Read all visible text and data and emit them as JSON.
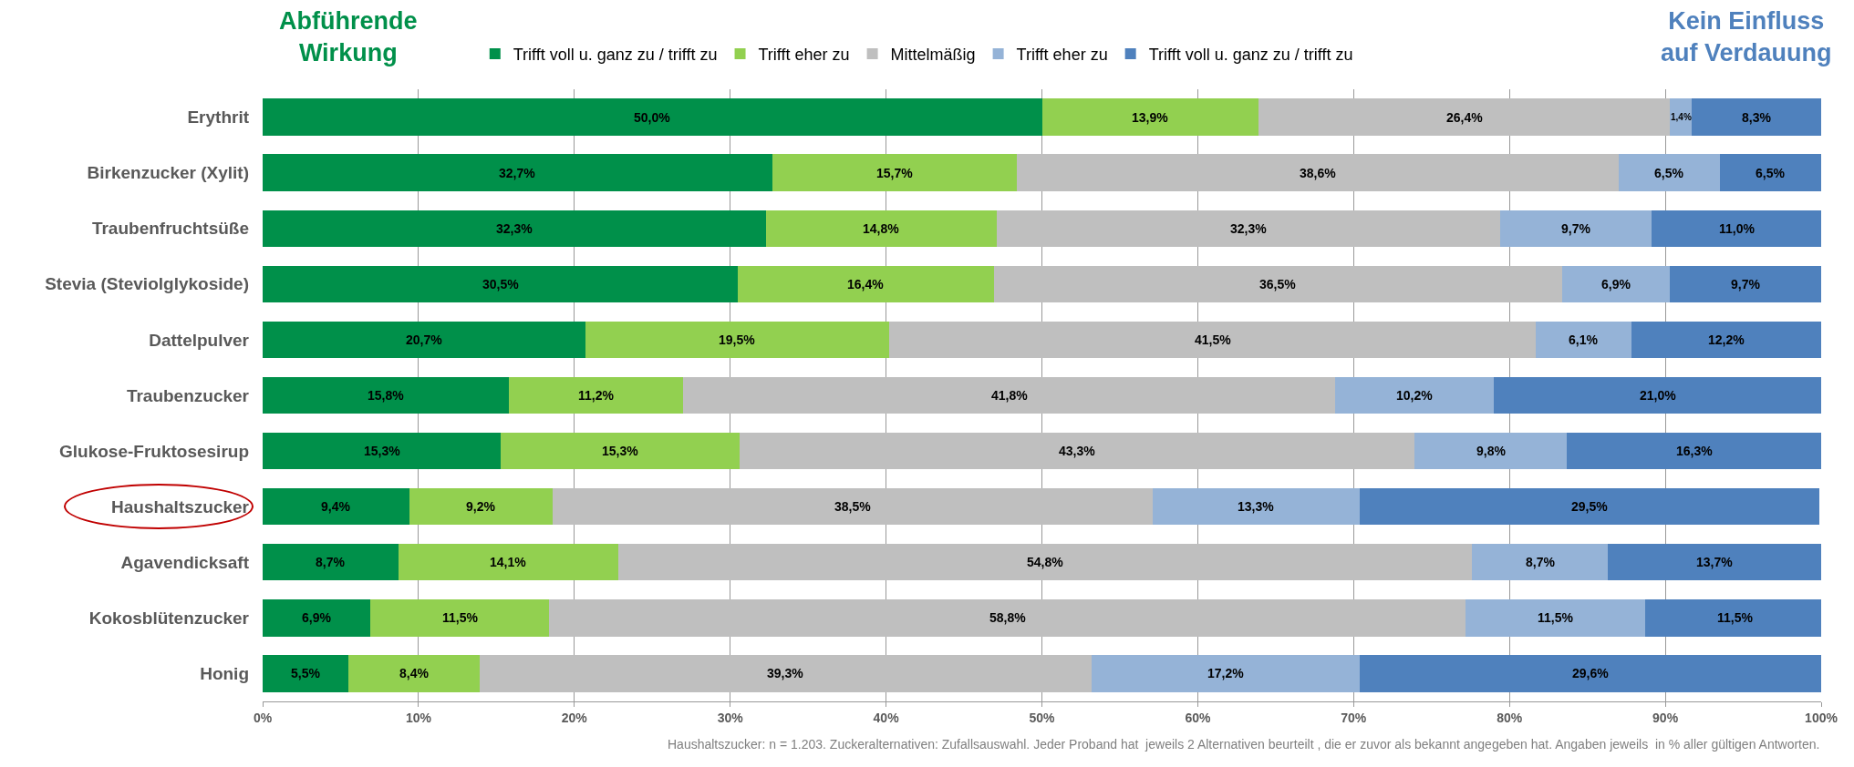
{
  "chart_data": {
    "type": "bar",
    "orientation": "horizontal",
    "stacked": true,
    "categories": [
      "Erythrit",
      "Birkenzucker (Xylit)",
      "Traubenfruchtsüße",
      "Stevia (Steviolglykoside)",
      "Dattelpulver",
      "Traubenzucker",
      "Glukose-Fruktosesirup",
      "Haushaltszucker",
      "Agavendicksaft",
      "Kokosblütenzucker",
      "Honig"
    ],
    "series": [
      {
        "name": "Trifft voll u. ganz zu / trifft zu",
        "color": "#00904a",
        "values": [
          50.0,
          32.7,
          32.3,
          30.5,
          20.7,
          15.8,
          15.3,
          9.4,
          8.7,
          6.9,
          5.5
        ],
        "value_labels": [
          "50,0%",
          "32,7%",
          "32,3%",
          "30,5%",
          "20,7%",
          "15,8%",
          "15,3%",
          "9,4%",
          "8,7%",
          "6,9%",
          "5,5%"
        ]
      },
      {
        "name": "Trifft eher zu",
        "color": "#92d050",
        "values": [
          13.9,
          15.7,
          14.8,
          16.4,
          19.5,
          11.2,
          15.3,
          9.2,
          14.1,
          11.5,
          8.4
        ],
        "value_labels": [
          "13,9%",
          "15,7%",
          "14,8%",
          "16,4%",
          "19,5%",
          "11,2%",
          "15,3%",
          "9,2%",
          "14,1%",
          "11,5%",
          "8,4%"
        ]
      },
      {
        "name": "Mittelmäßig",
        "color": "#bfbfbf",
        "values": [
          26.4,
          38.6,
          32.3,
          36.5,
          41.5,
          41.8,
          43.3,
          38.5,
          54.8,
          58.8,
          39.3
        ],
        "value_labels": [
          "26,4%",
          "38,6%",
          "32,3%",
          "36,5%",
          "41,5%",
          "41,8%",
          "43,3%",
          "38,5%",
          "54,8%",
          "58,8%",
          "39,3%"
        ]
      },
      {
        "name": "Trifft eher zu",
        "color": "#95b3d7",
        "values": [
          1.4,
          6.5,
          9.7,
          6.9,
          6.1,
          10.2,
          9.8,
          13.3,
          8.7,
          11.5,
          17.2
        ],
        "value_labels": [
          "1,4%",
          "6,5%",
          "9,7%",
          "6,9%",
          "6,1%",
          "10,2%",
          "9,8%",
          "13,3%",
          "8,7%",
          "11,5%",
          "17,2%"
        ]
      },
      {
        "name": "Trifft voll u. ganz zu / trifft zu",
        "color": "#4f81bd",
        "values": [
          8.3,
          6.5,
          11.0,
          9.7,
          12.2,
          21.0,
          16.3,
          29.5,
          13.7,
          11.5,
          29.6
        ],
        "value_labels": [
          "8,3%",
          "6,5%",
          "11,0%",
          "9,7%",
          "12,2%",
          "21,0%",
          "16,3%",
          "29,5%",
          "13,7%",
          "11,5%",
          "29,6%"
        ]
      }
    ],
    "xlim": [
      0,
      100
    ],
    "xticks": [
      {
        "value": 0,
        "label": "0%"
      },
      {
        "value": 10,
        "label": "10%"
      },
      {
        "value": 20,
        "label": "20%"
      },
      {
        "value": 30,
        "label": "30%"
      },
      {
        "value": 40,
        "label": "40%"
      },
      {
        "value": 50,
        "label": "50%"
      },
      {
        "value": 60,
        "label": "60%"
      },
      {
        "value": 70,
        "label": "70%"
      },
      {
        "value": 80,
        "label": "80%"
      },
      {
        "value": 90,
        "label": "90%"
      },
      {
        "value": 100,
        "label": "100%"
      }
    ],
    "grid": "x",
    "legend": "top",
    "annotations": [
      "Abführende\nWirkung",
      "Kein Einfluss\nauf Verdauung",
      "Haushaltszucker: n = 1.203. Zuckeralternativen: Zufallsauswahl. Jeder Proband hat  jeweils 2 Alternativen beurteilt , die er zuvor als bekannt angegeben hat. Angaben jeweils  in % aller gültigen Antworten."
    ]
  }
}
